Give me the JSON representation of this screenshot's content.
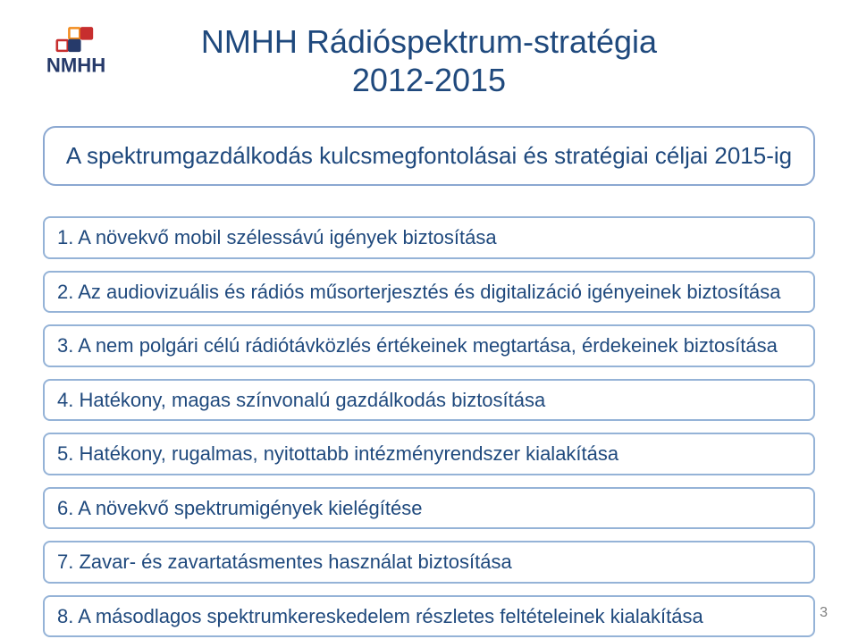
{
  "colors": {
    "title": "#1f497d",
    "subtitle_border": "#8ba8d1",
    "subtitle_text": "#1f497d",
    "item_border": "#95b3d7",
    "item_text": "#1f497d",
    "logo_orange": "#f28c1e",
    "logo_red": "#c72e2e",
    "logo_navy": "#263a6a",
    "page_num": "#808080"
  },
  "logo_text": "NMHH",
  "title_line1": "NMHH Rádióspektrum-stratégia",
  "title_line2": "2012-2015",
  "subtitle": "A spektrumgazdálkodás kulcsmegfontolásai és stratégiai céljai 2015-ig",
  "items": [
    "1. A növekvő mobil szélessávú igények biztosítása",
    "2. Az audiovizuális és rádiós műsorterjesztés és digitalizáció igényeinek biztosítása",
    "3. A nem polgári célú rádiótávközlés értékeinek megtartása, érdekeinek biztosítása",
    "4. Hatékony, magas színvonalú gazdálkodás biztosítása",
    "5. Hatékony, rugalmas, nyitottabb intézményrendszer kialakítása",
    "6. A növekvő spektrumigények kielégítése",
    "7. Zavar- és zavartatásmentes használat biztosítása",
    "8. A másodlagos spektrumkereskedelem részletes feltételeinek kialakítása"
  ],
  "page_number": "3"
}
